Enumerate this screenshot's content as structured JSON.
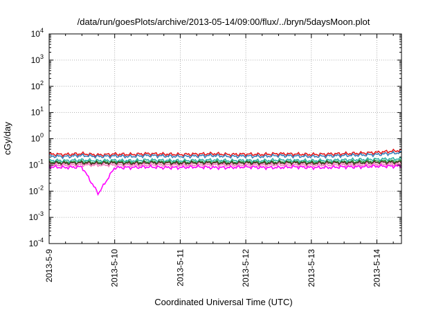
{
  "chart_data": {
    "type": "line",
    "title": "/data/run/goesPlots/archive/2013-05-14/09:00/flux/../bryn/5daysMoon.plot",
    "xlabel": "Coordinated Universal Time (UTC)",
    "ylabel": "cGy/day",
    "y_scale": "log",
    "ylim": [
      0.0001,
      10000
    ],
    "xlim": [
      "2013-05-09 00:00",
      "2013-05-14 09:00"
    ],
    "x_tick_labels": [
      "2013-5-9",
      "2013-5-10",
      "2013-5-11",
      "2013-5-12",
      "2013-5-13",
      "2013-5-14"
    ],
    "y_tick_labels": [
      {
        "base": "10",
        "exp": "4"
      },
      {
        "base": "10",
        "exp": "3"
      },
      {
        "base": "10",
        "exp": "2"
      },
      {
        "base": "10",
        "exp": "1"
      },
      {
        "base": "10",
        "exp": "0"
      },
      {
        "base": "10",
        "exp": "-1"
      },
      {
        "base": "10",
        "exp": "-2"
      },
      {
        "base": "10",
        "exp": "-3"
      },
      {
        "base": "10",
        "exp": "-4"
      }
    ],
    "grid": true,
    "x_days": [
      0,
      0.25,
      0.5,
      0.75,
      1.0,
      1.25,
      1.5,
      1.75,
      2.0,
      2.25,
      2.5,
      2.75,
      3.0,
      3.25,
      3.5,
      3.75,
      4.0,
      4.25,
      4.5,
      4.75,
      5.0,
      5.25,
      5.375
    ],
    "series": [
      {
        "color": "#e41a1c",
        "values": [
          0.26,
          0.25,
          0.27,
          0.24,
          0.26,
          0.25,
          0.27,
          0.26,
          0.25,
          0.26,
          0.27,
          0.25,
          0.26,
          0.25,
          0.27,
          0.26,
          0.25,
          0.26,
          0.27,
          0.28,
          0.3,
          0.34,
          0.36
        ]
      },
      {
        "color": "#377eb8",
        "values": [
          0.22,
          0.21,
          0.23,
          0.21,
          0.22,
          0.21,
          0.23,
          0.22,
          0.21,
          0.22,
          0.23,
          0.21,
          0.22,
          0.21,
          0.23,
          0.22,
          0.21,
          0.22,
          0.23,
          0.24,
          0.25,
          0.28,
          0.3
        ]
      },
      {
        "color": "#2fb0a5",
        "values": [
          0.15,
          0.145,
          0.155,
          0.145,
          0.15,
          0.145,
          0.155,
          0.15,
          0.145,
          0.15,
          0.155,
          0.145,
          0.15,
          0.145,
          0.155,
          0.15,
          0.145,
          0.15,
          0.155,
          0.16,
          0.165,
          0.17,
          0.17
        ]
      },
      {
        "color": "#1f9a3a",
        "values": [
          0.13,
          0.125,
          0.13,
          0.125,
          0.13,
          0.125,
          0.13,
          0.13,
          0.125,
          0.13,
          0.13,
          0.125,
          0.13,
          0.125,
          0.13,
          0.13,
          0.125,
          0.13,
          0.13,
          0.135,
          0.14,
          0.14,
          0.14
        ]
      },
      {
        "color": "#5a2a2a",
        "values": [
          0.12,
          0.115,
          0.12,
          0.115,
          0.12,
          0.115,
          0.12,
          0.12,
          0.115,
          0.12,
          0.12,
          0.115,
          0.12,
          0.115,
          0.12,
          0.12,
          0.115,
          0.12,
          0.12,
          0.12,
          0.125,
          0.125,
          0.125
        ]
      },
      {
        "color": "#f781bf",
        "values": [
          0.1,
          0.098,
          0.102,
          0.098,
          0.1,
          0.098,
          0.102,
          0.1,
          0.098,
          0.1,
          0.102,
          0.098,
          0.1,
          0.098,
          0.102,
          0.1,
          0.098,
          0.1,
          0.102,
          0.1,
          0.105,
          0.105,
          0.105
        ]
      },
      {
        "color": "#ff00ff",
        "values": [
          0.085,
          0.08,
          0.085,
          0.008,
          0.08,
          0.08,
          0.085,
          0.08,
          0.08,
          0.085,
          0.08,
          0.08,
          0.085,
          0.08,
          0.08,
          0.085,
          0.08,
          0.08,
          0.085,
          0.085,
          0.09,
          0.09,
          0.09
        ]
      }
    ]
  }
}
